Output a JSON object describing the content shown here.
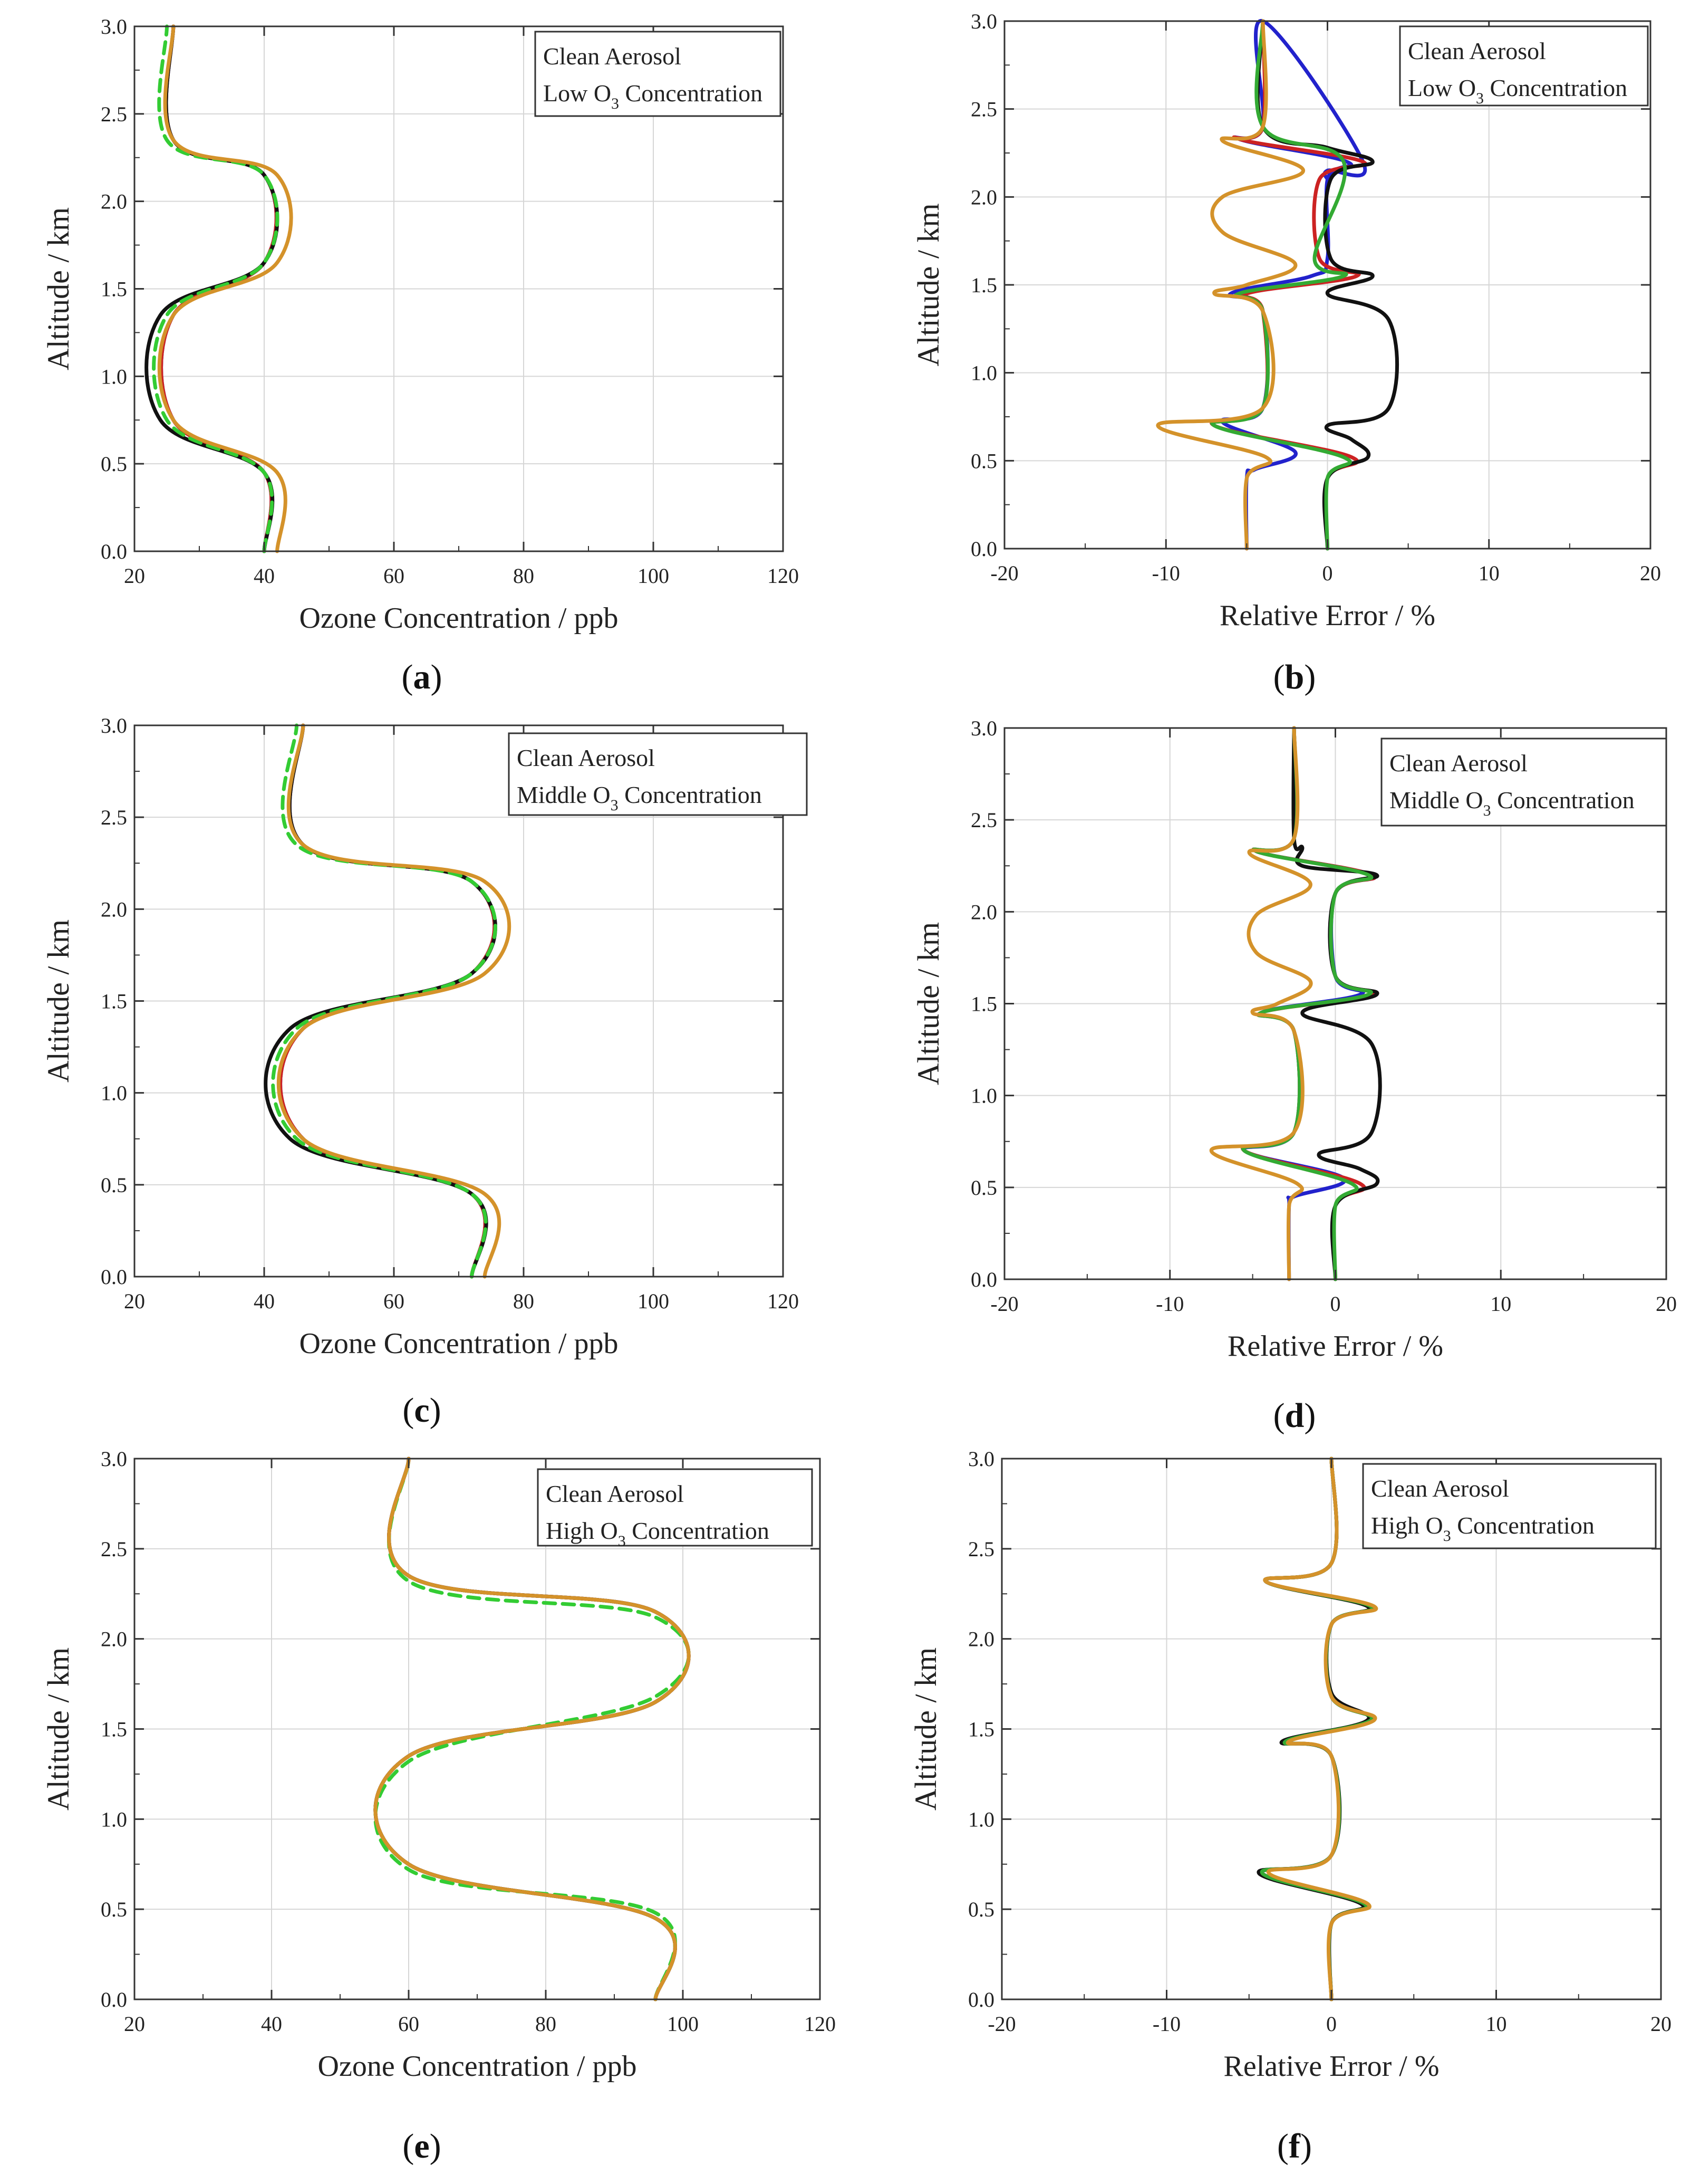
{
  "chart_data": [
    {
      "id": "a",
      "panel_label": "a",
      "type": "line",
      "legend": [
        "Clean Aerosol",
        {
          "pre": "Low O",
          "sub": "3",
          "post": " Concentration"
        }
      ],
      "xlabel": "Ozone Concentration  /  ppb",
      "ylabel": "Altitude  /  km",
      "xlim": [
        20,
        120
      ],
      "ylim": [
        0,
        3.0
      ],
      "xticks": [
        "20",
        "40",
        "60",
        "80",
        "100",
        "120"
      ],
      "yticks": [
        "0.0",
        "0.5",
        "1.0",
        "1.5",
        "2.0",
        "2.5",
        "3.0"
      ],
      "grid": true,
      "series": [
        {
          "color": "#2222cc",
          "style": "solid",
          "x": [
            40,
            40,
            26,
            26,
            40,
            40,
            26,
            26
          ],
          "y": [
            0,
            0.45,
            0.75,
            1.35,
            1.65,
            2.15,
            2.35,
            3.0
          ]
        },
        {
          "color": "#cc2222",
          "style": "solid",
          "x": [
            40,
            40,
            26,
            26,
            40,
            40,
            26,
            26
          ],
          "y": [
            0,
            0.45,
            0.75,
            1.35,
            1.65,
            2.15,
            2.35,
            3.0
          ]
        },
        {
          "color": "#111111",
          "style": "solid",
          "x": [
            40,
            40,
            24,
            24,
            40,
            40,
            26,
            26
          ],
          "y": [
            0,
            0.45,
            0.75,
            1.35,
            1.65,
            2.15,
            2.35,
            3.0
          ]
        },
        {
          "color": "#33cc33",
          "style": "dashed",
          "x": [
            40,
            40,
            25,
            25,
            40,
            40,
            25,
            25
          ],
          "y": [
            0,
            0.45,
            0.75,
            1.35,
            1.65,
            2.15,
            2.35,
            3.0
          ]
        },
        {
          "color": "#d4922a",
          "style": "solid",
          "x": [
            42,
            42,
            26,
            26,
            42,
            42,
            26,
            26
          ],
          "y": [
            0,
            0.45,
            0.75,
            1.35,
            1.65,
            2.15,
            2.35,
            3.0
          ]
        }
      ]
    },
    {
      "id": "b",
      "panel_label": "b",
      "type": "line",
      "legend": [
        "Clean Aerosol",
        {
          "pre": "Low O",
          "sub": "3",
          "post": " Concentration"
        }
      ],
      "xlabel": "Relative Error  /  %",
      "ylabel": "Altitude  /  km",
      "xlim": [
        -20,
        20
      ],
      "ylim": [
        0,
        3.0
      ],
      "xticks": [
        "-20",
        "-10",
        "0",
        "10",
        "20"
      ],
      "yticks": [
        "0.0",
        "0.5",
        "1.0",
        "1.5",
        "2.0",
        "2.5",
        "3.0"
      ],
      "grid": true,
      "series": [
        {
          "color": "#2222cc",
          "style": "solid",
          "x": [
            -5,
            -5,
            -4.5,
            -2,
            -6.5,
            -4,
            -4,
            -6,
            -1,
            0,
            0,
            1.2,
            -5.5,
            -4,
            -4,
            2.2,
            0,
            0
          ],
          "y": [
            0,
            0.4,
            0.45,
            0.55,
            0.72,
            0.8,
            1.35,
            1.45,
            1.55,
            1.65,
            2.1,
            2.2,
            2.33,
            2.4,
            3.0,
            2.2,
            2.15,
            2.1
          ]
        },
        {
          "color": "#cc2222",
          "style": "solid",
          "x": [
            0,
            0,
            1.5,
            -7,
            -4,
            -4,
            -5,
            1.8,
            -0.5,
            -0.5,
            2.2,
            -5.5,
            -4,
            -4
          ],
          "y": [
            0,
            0.4,
            0.52,
            0.7,
            0.8,
            1.35,
            1.45,
            1.55,
            1.65,
            2.1,
            2.2,
            2.33,
            2.4,
            3.0
          ]
        },
        {
          "color": "#111111",
          "style": "solid",
          "x": [
            0,
            0,
            2.5,
            1.5,
            0,
            3.8,
            3.8,
            0,
            2.8,
            0.2,
            0.2,
            2.8,
            0,
            -4,
            -4
          ],
          "y": [
            0,
            0.4,
            0.52,
            0.62,
            0.7,
            0.8,
            1.3,
            1.45,
            1.55,
            1.65,
            2.1,
            2.2,
            2.28,
            2.4,
            3.0
          ]
        },
        {
          "color": "#33aa33",
          "style": "solid",
          "x": [
            0,
            0,
            1.0,
            -7,
            -4,
            -4,
            -5.5,
            1.0,
            -0.8,
            1.0,
            -4,
            -4
          ],
          "y": [
            0,
            0.4,
            0.52,
            0.7,
            0.8,
            1.35,
            1.45,
            1.55,
            1.65,
            2.2,
            2.4,
            3.0
          ]
        },
        {
          "color": "#d4922a",
          "style": "solid",
          "x": [
            -5,
            -5,
            -3.8,
            -10.5,
            -4,
            -4,
            -7,
            -5,
            -2,
            -6.5,
            -6.5,
            -1.5,
            -6.5,
            -4,
            -4
          ],
          "y": [
            0,
            0.4,
            0.52,
            0.7,
            0.8,
            1.35,
            1.45,
            1.5,
            1.62,
            1.8,
            2.0,
            2.15,
            2.32,
            2.4,
            3.0
          ]
        }
      ]
    },
    {
      "id": "c",
      "panel_label": "c",
      "type": "line",
      "legend": [
        "Clean Aerosol",
        {
          "pre": "Middle O",
          "sub": "3",
          "post": " Concentration"
        }
      ],
      "xlabel": "Ozone Concentration  /  ppb",
      "ylabel": "Altitude  /  km",
      "xlim": [
        20,
        120
      ],
      "ylim": [
        0,
        3.0
      ],
      "xticks": [
        "20",
        "40",
        "60",
        "80",
        "100",
        "120"
      ],
      "yticks": [
        "0.0",
        "0.5",
        "1.0",
        "1.5",
        "2.0",
        "2.5",
        "3.0"
      ],
      "grid": true,
      "series": [
        {
          "color": "#2222cc",
          "style": "solid",
          "x": [
            72,
            72,
            46,
            46,
            72,
            72,
            46,
            46
          ],
          "y": [
            0,
            0.45,
            0.75,
            1.35,
            1.65,
            2.15,
            2.35,
            3.0
          ]
        },
        {
          "color": "#cc2222",
          "style": "solid",
          "x": [
            72,
            72,
            46,
            46,
            72,
            72,
            46,
            46
          ],
          "y": [
            0,
            0.45,
            0.75,
            1.35,
            1.65,
            2.15,
            2.35,
            3.0
          ]
        },
        {
          "color": "#111111",
          "style": "solid",
          "x": [
            72,
            72,
            44,
            44,
            72,
            72,
            46,
            46
          ],
          "y": [
            0,
            0.45,
            0.75,
            1.35,
            1.65,
            2.15,
            2.35,
            3.0
          ]
        },
        {
          "color": "#33cc33",
          "style": "dashed",
          "x": [
            72,
            72,
            45,
            45,
            72,
            72,
            45,
            45
          ],
          "y": [
            0,
            0.45,
            0.75,
            1.35,
            1.65,
            2.15,
            2.35,
            3.0
          ]
        },
        {
          "color": "#d4922a",
          "style": "solid",
          "x": [
            74,
            74,
            46,
            46,
            74,
            74,
            46,
            46
          ],
          "y": [
            0,
            0.45,
            0.75,
            1.35,
            1.65,
            2.15,
            2.35,
            3.0
          ]
        }
      ]
    },
    {
      "id": "d",
      "panel_label": "d",
      "type": "line",
      "legend": [
        "Clean Aerosol",
        {
          "pre": "Middle O",
          "sub": "3",
          "post": " Concentration"
        }
      ],
      "xlabel": "Relative Error  /  %",
      "ylabel": "Altitude  /  km",
      "xlim": [
        -20,
        20
      ],
      "ylim": [
        0,
        3.0
      ],
      "xticks": [
        "-20",
        "-10",
        "0",
        "10",
        "20"
      ],
      "yticks": [
        "0.0",
        "0.5",
        "1.0",
        "1.5",
        "2.0",
        "2.5",
        "3.0"
      ],
      "grid": true,
      "series": [
        {
          "color": "#2222cc",
          "style": "solid",
          "x": [
            -2.8,
            -2.8,
            -2.5,
            0.5,
            -5.5,
            -2.5,
            -2.5,
            -4.5,
            1.5,
            0,
            0,
            2.2,
            -4.8,
            -2.5,
            -2.5
          ],
          "y": [
            0,
            0.4,
            0.45,
            0.55,
            0.7,
            0.8,
            1.35,
            1.45,
            1.55,
            1.65,
            2.1,
            2.2,
            2.33,
            2.4,
            3.0
          ]
        },
        {
          "color": "#cc2222",
          "style": "solid",
          "x": [
            0,
            0,
            1.5,
            -5.5,
            -2.5,
            -2.5,
            -4.5,
            2.2,
            0,
            0,
            2.2,
            -4.8,
            -2.5,
            -2.5
          ],
          "y": [
            0,
            0.4,
            0.52,
            0.7,
            0.8,
            1.35,
            1.45,
            1.55,
            1.65,
            2.1,
            2.2,
            2.33,
            2.4,
            3.0
          ]
        },
        {
          "color": "#111111",
          "style": "solid",
          "x": [
            0,
            0,
            2.5,
            1.5,
            -1,
            2.2,
            2.2,
            -2,
            2.5,
            0,
            0,
            2.5,
            -2,
            -2,
            -2.5,
            -2.5
          ],
          "y": [
            0,
            0.4,
            0.52,
            0.6,
            0.68,
            0.8,
            1.28,
            1.45,
            1.55,
            1.65,
            2.1,
            2.2,
            2.25,
            2.35,
            2.4,
            3.0
          ]
        },
        {
          "color": "#33aa33",
          "style": "solid",
          "x": [
            0,
            0,
            1.0,
            -5.5,
            -2.5,
            -2.5,
            -4.5,
            2.0,
            0,
            0,
            2.0,
            -4.8,
            -2.5,
            -2.5
          ],
          "y": [
            0,
            0.4,
            0.52,
            0.7,
            0.8,
            1.35,
            1.45,
            1.55,
            1.65,
            2.1,
            2.2,
            2.33,
            2.4,
            3.0
          ]
        },
        {
          "color": "#d4922a",
          "style": "solid",
          "x": [
            -2.8,
            -2.8,
            -2.3,
            -7.5,
            -2.5,
            -2.5,
            -5,
            -3.5,
            -1.5,
            -4.8,
            -4.8,
            -1.5,
            -5.2,
            -2.5,
            -2.5
          ],
          "y": [
            0,
            0.4,
            0.52,
            0.7,
            0.8,
            1.35,
            1.45,
            1.5,
            1.62,
            1.78,
            1.98,
            2.15,
            2.32,
            2.4,
            3.0
          ]
        }
      ]
    },
    {
      "id": "e",
      "panel_label": "e",
      "type": "line",
      "legend": [
        "Clean Aerosol",
        {
          "pre": "High O",
          "sub": "3",
          "post": " Concentration"
        }
      ],
      "xlabel": "Ozone Concentration  /  ppb",
      "ylabel": "Altitude  /  km",
      "xlim": [
        20,
        120
      ],
      "ylim": [
        0,
        3.0
      ],
      "xticks": [
        "20",
        "40",
        "60",
        "80",
        "100",
        "120"
      ],
      "yticks": [
        "0.0",
        "0.5",
        "1.0",
        "1.5",
        "2.0",
        "2.5",
        "3.0"
      ],
      "grid": true,
      "series": [
        {
          "color": "#2222cc",
          "style": "solid",
          "x": [
            96,
            96,
            60,
            60,
            96,
            96,
            60,
            60
          ],
          "y": [
            0,
            0.45,
            0.75,
            1.35,
            1.65,
            2.15,
            2.35,
            3.0
          ]
        },
        {
          "color": "#cc2222",
          "style": "solid",
          "x": [
            96,
            96,
            60,
            60,
            96,
            96,
            60,
            60
          ],
          "y": [
            0,
            0.45,
            0.75,
            1.35,
            1.65,
            2.15,
            2.35,
            3.0
          ]
        },
        {
          "color": "#111111",
          "style": "solid",
          "x": [
            96,
            96,
            60,
            60,
            96,
            96,
            60,
            60
          ],
          "y": [
            0,
            0.45,
            0.75,
            1.35,
            1.65,
            2.15,
            2.35,
            3.0
          ]
        },
        {
          "color": "#33cc33",
          "style": "dashed",
          "x": [
            96,
            96,
            60,
            60,
            96,
            96,
            60,
            60
          ],
          "y": [
            0,
            0.48,
            0.72,
            1.32,
            1.68,
            2.12,
            2.32,
            3.0
          ]
        },
        {
          "color": "#d4922a",
          "style": "solid",
          "x": [
            96,
            96,
            60,
            60,
            96,
            96,
            60,
            60
          ],
          "y": [
            0,
            0.45,
            0.75,
            1.35,
            1.65,
            2.15,
            2.35,
            3.0
          ]
        }
      ]
    },
    {
      "id": "f",
      "panel_label": "f",
      "type": "line",
      "legend": [
        "Clean Aerosol",
        {
          "pre": "High O",
          "sub": "3",
          "post": " Concentration"
        }
      ],
      "xlabel": "Relative Error  /  %",
      "ylabel": "Altitude  /  km",
      "xlim": [
        -20,
        20
      ],
      "ylim": [
        0,
        3.0
      ],
      "xticks": [
        "-20",
        "-10",
        "0",
        "10",
        "20"
      ],
      "yticks": [
        "0.0",
        "0.5",
        "1.0",
        "1.5",
        "2.0",
        "2.5",
        "3.0"
      ],
      "grid": true,
      "series": [
        {
          "color": "#2222cc",
          "style": "solid",
          "x": [
            0,
            0,
            2.0,
            -4.2,
            0,
            0,
            -2.8,
            2.4,
            0,
            0,
            2.4,
            -4.0,
            0,
            0
          ],
          "y": [
            0,
            0.42,
            0.53,
            0.7,
            0.8,
            1.35,
            1.43,
            1.55,
            1.68,
            2.08,
            2.18,
            2.32,
            2.42,
            3.0
          ]
        },
        {
          "color": "#cc2222",
          "style": "solid",
          "x": [
            0,
            0,
            2.0,
            -4.2,
            0,
            0,
            -2.8,
            2.4,
            0,
            0,
            2.4,
            -4.0,
            0,
            0
          ],
          "y": [
            0,
            0.42,
            0.53,
            0.7,
            0.8,
            1.35,
            1.43,
            1.55,
            1.68,
            2.08,
            2.18,
            2.32,
            2.42,
            3.0
          ]
        },
        {
          "color": "#111111",
          "style": "solid",
          "x": [
            0,
            0,
            1.8,
            -4.4,
            0,
            0,
            -3.0,
            2.2,
            0,
            0,
            2.2,
            -4.0,
            0,
            0
          ],
          "y": [
            0,
            0.42,
            0.53,
            0.7,
            0.8,
            1.35,
            1.43,
            1.55,
            1.7,
            2.08,
            2.18,
            2.32,
            2.42,
            3.0
          ]
        },
        {
          "color": "#33aa33",
          "style": "solid",
          "x": [
            0,
            0,
            2.0,
            -4.2,
            0,
            0,
            -2.8,
            2.4,
            0,
            0,
            2.4,
            -4.0,
            0,
            0
          ],
          "y": [
            0,
            0.42,
            0.53,
            0.7,
            0.8,
            1.35,
            1.43,
            1.55,
            1.68,
            2.08,
            2.18,
            2.32,
            2.42,
            3.0
          ]
        },
        {
          "color": "#d4922a",
          "style": "solid",
          "x": [
            0,
            0,
            2.2,
            -3.8,
            0,
            0,
            -2.6,
            2.6,
            0,
            0,
            2.6,
            -4.0,
            0,
            0
          ],
          "y": [
            0,
            0.42,
            0.53,
            0.7,
            0.8,
            1.35,
            1.43,
            1.55,
            1.68,
            2.08,
            2.18,
            2.32,
            2.42,
            3.0
          ]
        }
      ]
    }
  ]
}
